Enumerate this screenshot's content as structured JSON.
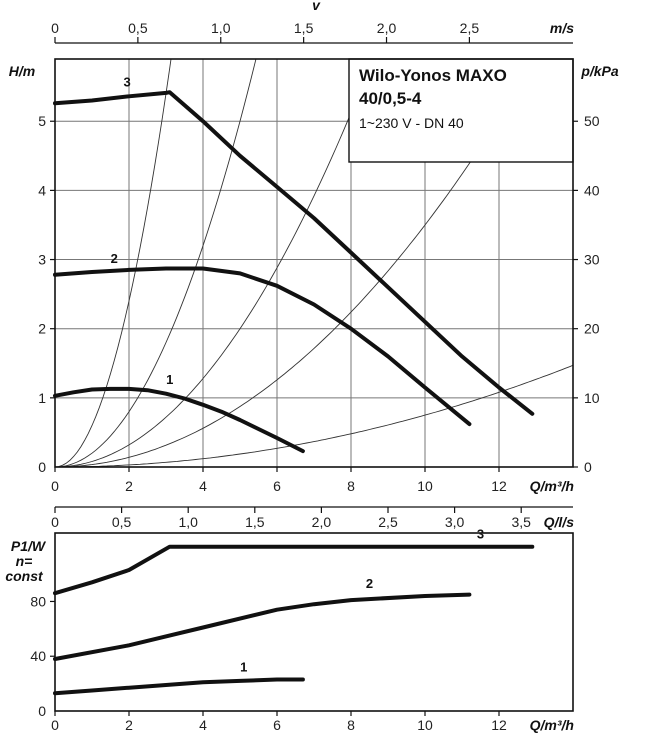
{
  "chart_data": [
    {
      "type": "line",
      "title": "Wilo-Yonos MAXO",
      "title_line2": "40/0,5-4",
      "subtitle": "1~230 V - DN 40",
      "xlabel": "Q/m³/h",
      "ylabel": "H/m",
      "y2label": "p/kPa",
      "top_axis_name": "v",
      "top_axis_unit": "m/s",
      "xlim": [
        0,
        14
      ],
      "ylim": [
        0,
        5.9
      ],
      "y2lim": [
        0,
        59
      ],
      "grid": true,
      "xticks": [
        "0",
        "2",
        "4",
        "6",
        "8",
        "10",
        "12"
      ],
      "yticks": [
        "0",
        "1",
        "2",
        "3",
        "4",
        "5"
      ],
      "y2ticks": [
        "0",
        "10",
        "20",
        "30",
        "40",
        "50"
      ],
      "top_ticks": [
        {
          "label": "0",
          "q": 0
        },
        {
          "label": "0,5",
          "q": 2.24
        },
        {
          "label": "1,0",
          "q": 4.48
        },
        {
          "label": "1,5",
          "q": 6.72
        },
        {
          "label": "2,0",
          "q": 8.96
        },
        {
          "label": "2,5",
          "q": 11.2
        }
      ],
      "system_curve_coefficients": [
        0.6,
        0.2,
        0.08,
        0.035,
        0.0075
      ],
      "series": [
        {
          "name": "3",
          "x": [
            0,
            1,
            2,
            3,
            3.1,
            4,
            5,
            6,
            7,
            8,
            9,
            10,
            11,
            12,
            12.9
          ],
          "y": [
            5.26,
            5.3,
            5.36,
            5.41,
            5.42,
            5.0,
            4.5,
            4.05,
            3.6,
            3.1,
            2.6,
            2.1,
            1.6,
            1.15,
            0.77
          ]
        },
        {
          "name": "2",
          "x": [
            0,
            1,
            2,
            3,
            4,
            5,
            6,
            7,
            8,
            9,
            10,
            11.2
          ],
          "y": [
            2.78,
            2.82,
            2.85,
            2.87,
            2.87,
            2.8,
            2.62,
            2.35,
            2.0,
            1.6,
            1.15,
            0.62
          ]
        },
        {
          "name": "1",
          "x": [
            0,
            0.5,
            1,
            1.5,
            2,
            2.5,
            3,
            3.5,
            4,
            4.5,
            5,
            5.5,
            6,
            6.7
          ],
          "y": [
            1.03,
            1.08,
            1.12,
            1.13,
            1.13,
            1.11,
            1.06,
            0.99,
            0.9,
            0.8,
            0.68,
            0.55,
            0.42,
            0.23
          ]
        }
      ]
    },
    {
      "type": "line",
      "xlabel": "Q/m³/h",
      "ylabel": "P1/W",
      "ylabel_note1": "n=",
      "ylabel_note2": "const",
      "top_axis_unit": "Q/l/s",
      "xlim": [
        0,
        14
      ],
      "ylim": [
        0,
        130
      ],
      "grid": false,
      "xticks": [
        "0",
        "2",
        "4",
        "6",
        "8",
        "10",
        "12"
      ],
      "yticks": [
        "0",
        "40",
        "80"
      ],
      "top_ticks": [
        {
          "label": "0",
          "q": 0
        },
        {
          "label": "0,5",
          "q": 1.8
        },
        {
          "label": "1,0",
          "q": 3.6
        },
        {
          "label": "1,5",
          "q": 5.4
        },
        {
          "label": "2,0",
          "q": 7.2
        },
        {
          "label": "2,5",
          "q": 9.0
        },
        {
          "label": "3,0",
          "q": 10.8
        },
        {
          "label": "3,5",
          "q": 12.6
        }
      ],
      "series": [
        {
          "name": "3",
          "x": [
            0,
            1,
            2,
            3.1,
            5,
            8,
            11,
            12.9
          ],
          "y": [
            86,
            94,
            103,
            120,
            120,
            120,
            120,
            120
          ]
        },
        {
          "name": "2",
          "x": [
            0,
            2,
            4,
            6,
            7,
            8,
            10,
            11.2
          ],
          "y": [
            38,
            48,
            61,
            74,
            78,
            81,
            84,
            85
          ]
        },
        {
          "name": "1",
          "x": [
            0,
            1,
            2,
            3,
            4,
            5,
            6,
            6.7
          ],
          "y": [
            13,
            15,
            17,
            19,
            21,
            22,
            23,
            23
          ]
        }
      ]
    }
  ]
}
